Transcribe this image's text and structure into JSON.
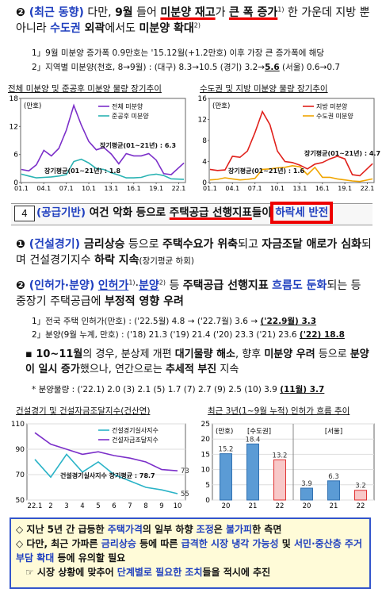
{
  "top": {
    "p1": [
      "❷",
      " (최근 동향)",
      " 다만, ",
      "9월",
      " 들어 ",
      "미분양 재고",
      "가 ",
      "큰 폭 증가",
      "1)",
      " 한 가운데 지방 뿐 아니라 ",
      "수도권",
      " 외곽",
      "에서도 ",
      "미분양 확대",
      "2)"
    ],
    "notes": [
      [
        "1」9월 미분양 증가폭 0.9만호는 '15.12월(+1.2만호) 이후 가장 큰 증가폭에 해당"
      ],
      [
        "2」지역별 미분양(천호, 8→9월) : (대구) 8.3→10.5 (경기) 3.2→",
        "5.6",
        " (서울) 0.6→0.7"
      ]
    ]
  },
  "chart_data": [
    {
      "type": "line",
      "title": "전체 미분양 및 준공후 미분양 물량 장기추이",
      "unit": "(만호)",
      "x": [
        2001,
        2002,
        2003,
        2004,
        2005,
        2006,
        2007,
        2008,
        2009,
        2010,
        2011,
        2012,
        2013,
        2014,
        2015,
        2016,
        2017,
        2018,
        2019,
        2020,
        2021,
        2022.7
      ],
      "xlim": [
        2000.9,
        2022.9
      ],
      "xticks": [
        {
          "value": 2001,
          "label": "01.1"
        },
        {
          "value": 2004,
          "label": "04.1"
        },
        {
          "value": 2007,
          "label": "07.1"
        },
        {
          "value": 2010,
          "label": "10.1"
        },
        {
          "value": 2013,
          "label": "13.1"
        },
        {
          "value": 2016,
          "label": "16.1"
        },
        {
          "value": 2019,
          "label": "19.1"
        },
        {
          "value": 2022,
          "label": "22.1"
        }
      ],
      "ylim": [
        0,
        18
      ],
      "yticks": [
        0,
        6,
        12,
        18
      ],
      "series": [
        {
          "name": "전체 미분양",
          "color": "#7b2fc9",
          "values": [
            2.8,
            2.5,
            3.8,
            6.9,
            5.7,
            7.3,
            11.2,
            16.5,
            12.3,
            8.8,
            7.0,
            7.5,
            6.1,
            4.0,
            6.2,
            5.7,
            5.7,
            6.2,
            4.8,
            1.9,
            1.7,
            4.2
          ]
        },
        {
          "name": "준공후 미분양",
          "color": "#2ab3b3",
          "values": [
            1.8,
            1.4,
            1.0,
            1.1,
            1.2,
            1.4,
            1.7,
            4.5,
            5.0,
            4.2,
            3.0,
            2.8,
            2.1,
            1.6,
            1.0,
            1.0,
            1.1,
            1.6,
            1.8,
            1.5,
            0.8,
            0.7
          ]
        }
      ],
      "annotations": [
        "장기평균(01~21년) : 6.3",
        "장기평균(01~21년) : 1.8"
      ]
    },
    {
      "type": "line",
      "title": "수도권 및 지방 미분양 물량 장기추이",
      "unit": "(만호)",
      "x": [
        2001,
        2002,
        2003,
        2004,
        2005,
        2006,
        2007,
        2008,
        2009,
        2010,
        2011,
        2012,
        2013,
        2014,
        2015,
        2016,
        2017,
        2018,
        2019,
        2020,
        2021,
        2022.7
      ],
      "xlim": [
        2000.9,
        2022.9
      ],
      "xticks": [
        {
          "value": 2001,
          "label": "01.1"
        },
        {
          "value": 2004,
          "label": "04.1"
        },
        {
          "value": 2007,
          "label": "07.1"
        },
        {
          "value": 2010,
          "label": "10.1"
        },
        {
          "value": 2013,
          "label": "13.1"
        },
        {
          "value": 2016,
          "label": "16.1"
        },
        {
          "value": 2019,
          "label": "19.1"
        },
        {
          "value": 2022,
          "label": "22.1"
        }
      ],
      "ylim": [
        0,
        16
      ],
      "yticks": [
        0,
        4,
        8,
        12,
        16
      ],
      "series": [
        {
          "name": "지방 미분양",
          "color": "#e0201b",
          "values": [
            2.5,
            2.3,
            2.4,
            5.0,
            4.8,
            6.0,
            9.5,
            13.5,
            11.0,
            6.0,
            4.0,
            3.8,
            3.3,
            2.6,
            3.5,
            3.8,
            4.5,
            5.0,
            4.5,
            1.5,
            1.3,
            3.6
          ]
        },
        {
          "name": "수도권 미분양",
          "color": "#f0a500",
          "values": [
            0.5,
            0.6,
            0.9,
            0.7,
            0.5,
            0.6,
            0.8,
            2.5,
            2.6,
            2.8,
            2.9,
            3.2,
            3.0,
            1.5,
            2.9,
            1.0,
            1.0,
            0.7,
            0.5,
            0.3,
            0.2,
            0.7
          ]
        }
      ],
      "annotations": [
        "장기평균(01~21년) : 4.7",
        "장기평균(01~21년) : 1.6"
      ]
    },
    {
      "type": "line",
      "title": "건설경기 및 건설자금조달지수(건산연)",
      "categories": [
        "22.1",
        "2",
        "3",
        "4",
        "5",
        "6",
        "7",
        "8",
        "9",
        "10"
      ],
      "ylim": [
        50,
        110
      ],
      "yticks": [
        50,
        70,
        90,
        110
      ],
      "grid": true,
      "series": [
        {
          "name": "건설경기실사지수",
          "color": "#2ab3c7",
          "values": [
            82,
            68,
            86,
            72,
            80,
            70,
            65,
            60,
            58,
            55
          ]
        },
        {
          "name": "건설자금조달지수",
          "color": "#7b2fc9",
          "values": [
            103,
            94,
            90,
            86,
            88,
            85,
            83,
            80,
            74,
            73
          ]
        }
      ],
      "annotations": [
        "건설경기실사지수 장기평균 : 78.7"
      ]
    },
    {
      "type": "bar",
      "title": "최근 3년(1~9월 누적) 인허가 흐름 추이",
      "unit": "(만호)",
      "groups": [
        "[수도권]",
        "[서울]"
      ],
      "categories": [
        "20",
        "21",
        "22",
        "20",
        "21",
        "22"
      ],
      "values": [
        15.2,
        18.4,
        13.2,
        3.9,
        6.3,
        3.2
      ],
      "colors": [
        "#5b9bd5",
        "#5b9bd5",
        "#f8c8c8",
        "#5b9bd5",
        "#5b9bd5",
        "#f8c8c8"
      ],
      "ylim": [
        0,
        25
      ],
      "yticks": [
        0,
        5,
        10,
        15,
        20,
        25
      ],
      "grid": true
    }
  ],
  "section": {
    "number": "4",
    "title": [
      "(공급기반)",
      " 여건 악화 등으로 ",
      "주택공급 선행지표",
      "들이 ",
      "하락세 반전"
    ]
  },
  "items": [
    [
      "❶",
      " (건설경기)",
      " 금리상승",
      " 등으로 ",
      "주택수요가 위축",
      "되고 ",
      "자금조달 애로가 심화",
      "되며 건설경기지수 ",
      "하락 지속",
      "(장기평균 하회)"
    ],
    [
      "❷",
      " (인허가·분양)",
      " ",
      "인허가",
      "1)",
      "·",
      "분양",
      "2)",
      " 등 ",
      "주택공급 선행지표",
      " ",
      "흐름도 둔화",
      "되는 등 중장기 주택공급에 ",
      "부정적 영향 우려"
    ]
  ],
  "notes2": [
    [
      "1」전국 주택 인허가(만호) : ('22.5월) 4.8 → ('22.7월) 3.6 → ",
      "('22.9월) 3.3"
    ],
    [
      "2」분양(9월 누계, 만호) : ('18) 21.3 ('19) 21.4 ('20) 23.3 ('21) 23.6 ",
      "('22) 18.8"
    ]
  ],
  "point": [
    "▪",
    " 10~11월",
    "의 경우, 분상제 개편 ",
    "대기물량 해소",
    ", 향후 ",
    "미분양 우려",
    " 등으로 ",
    "분양이 일시 증가",
    "했으나, 연간으로는 ",
    "추세적 부진",
    " 지속"
  ],
  "star": [
    "* 분양물량 : ('22.1) 2.0 (3) 2.1 (5) 1.7 (7) 2.7 (9) 2.5 (10) 3.9 ",
    "(11월) 3.7"
  ],
  "summary": [
    [
      "◇ 지난 5년 간 급등한 ",
      "주택가격",
      "의 일부 하향 ",
      "조정",
      "은 ",
      "불가피",
      "한 측면"
    ],
    [
      "◇ 다만, 최근 가파른 ",
      "금리상승",
      " 등에 따른 ",
      "급격한 시장 냉각 가능성",
      " 및 ",
      "서민·중산층 주거 부담 확대",
      " 등에 유의할 필요"
    ],
    [
      "☞ 시장 상황에 맞추어 ",
      "단계별로 필요한 조치",
      "들을 적시에 추진"
    ]
  ]
}
